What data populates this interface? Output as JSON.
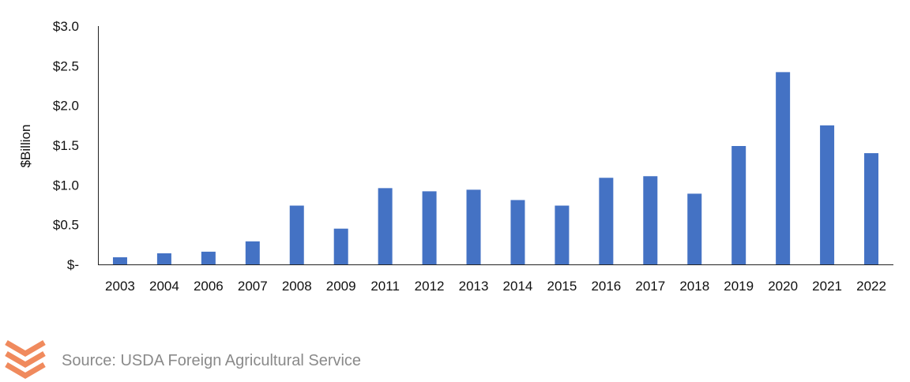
{
  "chart_data": {
    "type": "bar",
    "title": "",
    "xlabel": "",
    "ylabel": "$Billion",
    "ylim": [
      0,
      3.0
    ],
    "yticks": [
      0,
      0.5,
      1.0,
      1.5,
      2.0,
      2.5,
      3.0
    ],
    "ytick_labels": [
      "$-",
      "$0.5",
      "$1.0",
      "$1.5",
      "$2.0",
      "$2.5",
      "$3.0"
    ],
    "categories": [
      "2003",
      "2004",
      "2006",
      "2007",
      "2008",
      "2009",
      "2011",
      "2012",
      "2013",
      "2014",
      "2015",
      "2016",
      "2017",
      "2018",
      "2019",
      "2020",
      "2021",
      "2022"
    ],
    "values": [
      0.09,
      0.14,
      0.16,
      0.29,
      0.74,
      0.45,
      0.96,
      0.92,
      0.94,
      0.81,
      0.74,
      1.09,
      1.11,
      0.89,
      1.49,
      2.42,
      1.75,
      1.4
    ],
    "bar_color": "#4472C4",
    "grid": false,
    "legend": "none"
  },
  "footer": {
    "source": "Source: USDA Foreign Agricultural Service",
    "logo_icon": "chevron-stack-logo-icon",
    "logo_color": "#F08A5D"
  }
}
